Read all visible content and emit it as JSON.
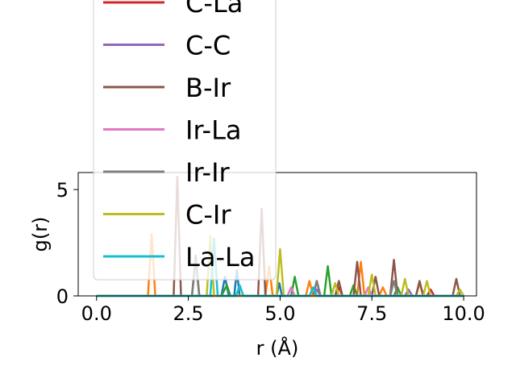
{
  "chart_data": {
    "type": "line",
    "xlabel": "r (Å)",
    "ylabel": "g(r)",
    "xlim": [
      -0.5,
      10.35
    ],
    "ylim": [
      0,
      5.8
    ],
    "xticks": [
      "0.0",
      "2.5",
      "5.0",
      "7.5",
      "10.0"
    ],
    "yticks": [
      "0",
      "5"
    ],
    "grid": false,
    "legend_placement": "upper-left (overflowing top)",
    "series": [
      {
        "name": "",
        "color": "#1f77b4",
        "points": [
          [
            0,
            0
          ],
          [
            3.4,
            0
          ],
          [
            3.5,
            0.9
          ],
          [
            3.6,
            0
          ],
          [
            3.75,
            0
          ],
          [
            3.82,
            1.2
          ],
          [
            3.9,
            0
          ],
          [
            4.9,
            0
          ],
          [
            4.98,
            0.6
          ],
          [
            5.05,
            0
          ],
          [
            10,
            0
          ]
        ]
      },
      {
        "name": "",
        "color": "#ff7f0e",
        "points": [
          [
            0,
            0
          ],
          [
            1.4,
            0
          ],
          [
            1.5,
            2.9
          ],
          [
            1.6,
            0
          ],
          [
            4.6,
            0
          ],
          [
            4.7,
            1.4
          ],
          [
            4.8,
            0
          ],
          [
            5.7,
            0
          ],
          [
            5.8,
            0.7
          ],
          [
            5.9,
            0
          ],
          [
            7.1,
            0
          ],
          [
            7.2,
            1.6
          ],
          [
            7.3,
            0
          ],
          [
            7.7,
            0
          ],
          [
            7.8,
            0.4
          ],
          [
            7.9,
            0
          ],
          [
            8.7,
            0
          ],
          [
            8.8,
            0.6
          ],
          [
            8.9,
            0
          ],
          [
            10,
            0
          ]
        ]
      },
      {
        "name": "",
        "color": "#2ca02c",
        "points": [
          [
            0,
            0
          ],
          [
            3.4,
            0
          ],
          [
            3.55,
            0.5
          ],
          [
            3.65,
            0
          ],
          [
            5.3,
            0
          ],
          [
            5.4,
            0.9
          ],
          [
            5.5,
            0
          ],
          [
            6.2,
            0
          ],
          [
            6.3,
            1.4
          ],
          [
            6.4,
            0
          ],
          [
            6.9,
            0
          ],
          [
            7.0,
            0.5
          ],
          [
            7.1,
            0
          ],
          [
            8.1,
            0
          ],
          [
            8.2,
            0.4
          ],
          [
            8.3,
            0
          ],
          [
            10,
            0
          ]
        ]
      },
      {
        "name": "C-La",
        "color": "#d62728",
        "points": [
          [
            0,
            0
          ],
          [
            6.5,
            0
          ],
          [
            6.6,
            0.4
          ],
          [
            6.7,
            0
          ],
          [
            9.0,
            0
          ],
          [
            9.1,
            0.3
          ],
          [
            9.2,
            0
          ],
          [
            10,
            0
          ]
        ]
      },
      {
        "name": "C-C",
        "color": "#9467bd",
        "points": [
          [
            0,
            0
          ],
          [
            5.9,
            0
          ],
          [
            6.0,
            0.3
          ],
          [
            6.1,
            0
          ],
          [
            8.4,
            0
          ],
          [
            8.5,
            0.3
          ],
          [
            8.6,
            0
          ],
          [
            10,
            0
          ]
        ]
      },
      {
        "name": "B-Ir",
        "color": "#8c564b",
        "points": [
          [
            0,
            0
          ],
          [
            2.1,
            0
          ],
          [
            2.2,
            5.6
          ],
          [
            2.3,
            0
          ],
          [
            2.6,
            0
          ],
          [
            2.7,
            1.9
          ],
          [
            2.8,
            0
          ],
          [
            4.4,
            0
          ],
          [
            4.5,
            4.1
          ],
          [
            4.6,
            0
          ],
          [
            5.9,
            0
          ],
          [
            6.0,
            0.7
          ],
          [
            6.1,
            0
          ],
          [
            6.5,
            0
          ],
          [
            6.6,
            0.7
          ],
          [
            6.7,
            0
          ],
          [
            7.0,
            0
          ],
          [
            7.1,
            1.6
          ],
          [
            7.2,
            0
          ],
          [
            7.5,
            0
          ],
          [
            7.6,
            0.9
          ],
          [
            7.7,
            0
          ],
          [
            8.0,
            0
          ],
          [
            8.1,
            1.7
          ],
          [
            8.2,
            0
          ],
          [
            8.7,
            0
          ],
          [
            8.8,
            0.7
          ],
          [
            8.9,
            0
          ],
          [
            9.7,
            0
          ],
          [
            9.8,
            0.8
          ],
          [
            9.9,
            0
          ],
          [
            10,
            0
          ]
        ]
      },
      {
        "name": "Ir-La",
        "color": "#e377c2",
        "points": [
          [
            0,
            0
          ],
          [
            5.2,
            0
          ],
          [
            5.3,
            0.4
          ],
          [
            5.4,
            0
          ],
          [
            7.3,
            0
          ],
          [
            7.4,
            0.4
          ],
          [
            7.5,
            0
          ],
          [
            10,
            0
          ]
        ]
      },
      {
        "name": "Ir-Ir",
        "color": "#7f7f7f",
        "points": [
          [
            0,
            0
          ],
          [
            2.6,
            0
          ],
          [
            2.7,
            1.7
          ],
          [
            2.8,
            0
          ],
          [
            5.9,
            0
          ],
          [
            6.0,
            0.7
          ],
          [
            6.1,
            0
          ],
          [
            8.0,
            0
          ],
          [
            8.1,
            0.7
          ],
          [
            8.2,
            0
          ],
          [
            10,
            0
          ]
        ]
      },
      {
        "name": "C-Ir",
        "color": "#bcbd22",
        "points": [
          [
            0,
            0
          ],
          [
            3.0,
            0
          ],
          [
            3.1,
            2.8
          ],
          [
            3.2,
            0
          ],
          [
            4.9,
            0
          ],
          [
            5.0,
            2.2
          ],
          [
            5.1,
            0
          ],
          [
            6.4,
            0
          ],
          [
            6.5,
            0.6
          ],
          [
            6.6,
            0
          ],
          [
            7.4,
            0
          ],
          [
            7.5,
            1.0
          ],
          [
            7.6,
            0
          ],
          [
            8.3,
            0
          ],
          [
            8.4,
            0.8
          ],
          [
            8.5,
            0
          ],
          [
            8.9,
            0
          ],
          [
            9.0,
            0.7
          ],
          [
            9.1,
            0
          ],
          [
            9.8,
            0
          ],
          [
            9.9,
            0.3
          ],
          [
            10,
            0
          ]
        ]
      },
      {
        "name": "La-La",
        "color": "#17becf",
        "points": [
          [
            0,
            0
          ],
          [
            3.1,
            0
          ],
          [
            3.2,
            2.7
          ],
          [
            3.3,
            0
          ],
          [
            3.8,
            0
          ],
          [
            3.9,
            0.5
          ],
          [
            4.0,
            0
          ],
          [
            5.8,
            0
          ],
          [
            5.9,
            0.4
          ],
          [
            6.0,
            0
          ],
          [
            10,
            0
          ]
        ]
      }
    ],
    "legend": [
      {
        "label": "C-La",
        "color": "#d62728"
      },
      {
        "label": "C-C",
        "color": "#9467bd"
      },
      {
        "label": "B-Ir",
        "color": "#8c564b"
      },
      {
        "label": "Ir-La",
        "color": "#e377c2"
      },
      {
        "label": "Ir-Ir",
        "color": "#7f7f7f"
      },
      {
        "label": "C-Ir",
        "color": "#bcbd22"
      },
      {
        "label": "La-La",
        "color": "#17becf"
      }
    ]
  }
}
